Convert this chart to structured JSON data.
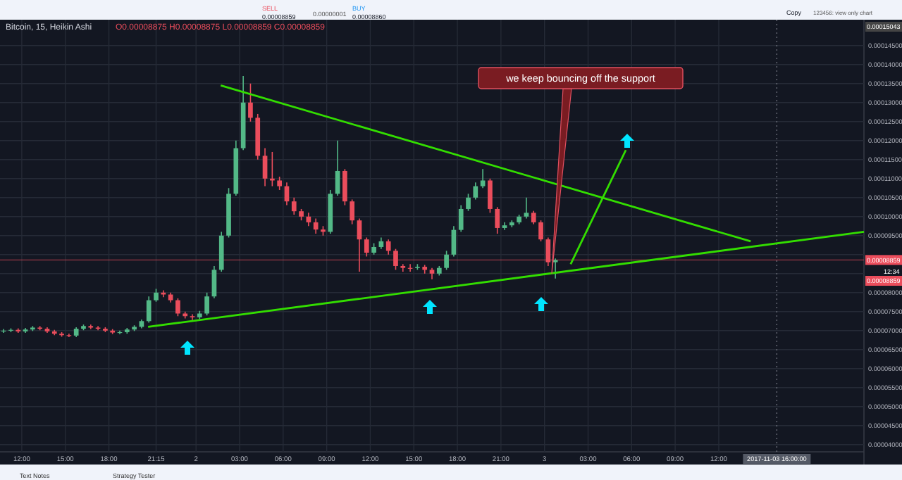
{
  "chart_data": {
    "type": "candlestick",
    "title": "Bitcoin, 15, Heikin Ashi",
    "subtitle": "O0.00008875 H0.00008875 L0.00008859 C0.00008859",
    "xlim": [
      "2017-11-01T10:30",
      "2017-11-03T22:00"
    ],
    "ylim": [
      3.9e-05,
      0.0001518
    ],
    "xticks": [
      {
        "value": "2017-11-01T12:00",
        "label": "12:00"
      },
      {
        "value": "2017-11-01T15:00",
        "label": "15:00"
      },
      {
        "value": "2017-11-01T18:00",
        "label": "18:00"
      },
      {
        "value": "2017-11-01T21:15",
        "label": "21:15"
      },
      {
        "value": "2017-11-02T00:00",
        "label": "2"
      },
      {
        "value": "2017-11-02T03:00",
        "label": "03:00"
      },
      {
        "value": "2017-11-02T06:00",
        "label": "06:00"
      },
      {
        "value": "2017-11-02T09:00",
        "label": "09:00"
      },
      {
        "value": "2017-11-02T12:00",
        "label": "12:00"
      },
      {
        "value": "2017-11-02T15:00",
        "label": "15:00"
      },
      {
        "value": "2017-11-02T18:00",
        "label": "18:00"
      },
      {
        "value": "2017-11-02T21:00",
        "label": "21:00"
      },
      {
        "value": "2017-11-03T00:00",
        "label": "3"
      },
      {
        "value": "2017-11-03T03:00",
        "label": "03:00"
      },
      {
        "value": "2017-11-03T06:00",
        "label": "06:00"
      },
      {
        "value": "2017-11-03T09:00",
        "label": "09:00"
      },
      {
        "value": "2017-11-03T12:00",
        "label": "12:00"
      }
    ],
    "yticks": [
      {
        "value": 4e-05,
        "label": "0.00004000"
      },
      {
        "value": 4.5e-05,
        "label": "0.00004500"
      },
      {
        "value": 5e-05,
        "label": "0.00005000"
      },
      {
        "value": 5.5e-05,
        "label": "0.00005500"
      },
      {
        "value": 6e-05,
        "label": "0.00006000"
      },
      {
        "value": 6.5e-05,
        "label": "0.00006500"
      },
      {
        "value": 7e-05,
        "label": "0.00007000"
      },
      {
        "value": 7.5e-05,
        "label": "0.00007500"
      },
      {
        "value": 8e-05,
        "label": "0.00008000"
      },
      {
        "value": 8.5e-05,
        "label": null
      },
      {
        "value": 9e-05,
        "label": null
      },
      {
        "value": 9.5e-05,
        "label": "0.00009500"
      },
      {
        "value": 0.0001,
        "label": "0.00010000"
      },
      {
        "value": 0.000105,
        "label": "0.00010500"
      },
      {
        "value": 0.00011,
        "label": "0.00011000"
      },
      {
        "value": 0.000115,
        "label": "0.00011500"
      },
      {
        "value": 0.00012,
        "label": "0.00012000"
      },
      {
        "value": 0.000125,
        "label": "0.00012500"
      },
      {
        "value": 0.00013,
        "label": "0.00013000"
      },
      {
        "value": 0.000135,
        "label": "0.00013500"
      },
      {
        "value": 0.00014,
        "label": "0.00014000"
      },
      {
        "value": 0.000145,
        "label": "0.00014500"
      }
    ],
    "grid": true,
    "series": [
      {
        "x": [
          "2017-11-01T10:45",
          "2017-11-01T11:15",
          "2017-11-01T11:45",
          "2017-11-01T12:15",
          "2017-11-01T12:45",
          "2017-11-01T13:15",
          "2017-11-01T13:45",
          "2017-11-01T14:15",
          "2017-11-01T14:45",
          "2017-11-01T15:15",
          "2017-11-01T15:45",
          "2017-11-01T16:15",
          "2017-11-01T16:45",
          "2017-11-01T17:15",
          "2017-11-01T17:45",
          "2017-11-01T18:15",
          "2017-11-01T18:45",
          "2017-11-01T19:15",
          "2017-11-01T19:45",
          "2017-11-01T20:15",
          "2017-11-01T20:45",
          "2017-11-01T21:15",
          "2017-11-01T21:45",
          "2017-11-01T22:15",
          "2017-11-01T22:45",
          "2017-11-01T23:15",
          "2017-11-01T23:45",
          "2017-11-02T00:15",
          "2017-11-02T00:45",
          "2017-11-02T01:15",
          "2017-11-02T01:45",
          "2017-11-02T02:15",
          "2017-11-02T02:45",
          "2017-11-02T03:15",
          "2017-11-02T03:45",
          "2017-11-02T04:15",
          "2017-11-02T04:45",
          "2017-11-02T05:15",
          "2017-11-02T05:45",
          "2017-11-02T06:15",
          "2017-11-02T06:45",
          "2017-11-02T07:15",
          "2017-11-02T07:45",
          "2017-11-02T08:15",
          "2017-11-02T08:45",
          "2017-11-02T09:15",
          "2017-11-02T09:45",
          "2017-11-02T10:15",
          "2017-11-02T10:45",
          "2017-11-02T11:15",
          "2017-11-02T11:45",
          "2017-11-02T12:15",
          "2017-11-02T12:45",
          "2017-11-02T13:15",
          "2017-11-02T13:45",
          "2017-11-02T14:15",
          "2017-11-02T14:45",
          "2017-11-02T15:15",
          "2017-11-02T15:45",
          "2017-11-02T16:15",
          "2017-11-02T16:45",
          "2017-11-02T17:15",
          "2017-11-02T17:45",
          "2017-11-02T18:15",
          "2017-11-02T18:45",
          "2017-11-02T19:15",
          "2017-11-02T19:45",
          "2017-11-02T20:15",
          "2017-11-02T20:45",
          "2017-11-02T21:15",
          "2017-11-02T21:45",
          "2017-11-02T22:15",
          "2017-11-02T22:45",
          "2017-11-02T23:15",
          "2017-11-02T23:45",
          "2017-11-03T00:15",
          "2017-11-03T00:45"
        ],
        "ohlc": [
          [
            6.98e-05,
            7.04e-05,
            6.94e-05,
            7e-05
          ],
          [
            7e-05,
            7.06e-05,
            6.96e-05,
            7.02e-05
          ],
          [
            7.02e-05,
            7.06e-05,
            6.94e-05,
            6.98e-05
          ],
          [
            6.98e-05,
            7.07e-05,
            6.94e-05,
            7.03e-05
          ],
          [
            7.03e-05,
            7.12e-05,
            6.99e-05,
            7.08e-05
          ],
          [
            7.08e-05,
            7.12e-05,
            7.01e-05,
            7.05e-05
          ],
          [
            7.05e-05,
            7.09e-05,
            6.94e-05,
            6.98e-05
          ],
          [
            6.98e-05,
            7.02e-05,
            6.88e-05,
            6.92e-05
          ],
          [
            6.92e-05,
            6.96e-05,
            6.84e-05,
            6.88e-05
          ],
          [
            6.88e-05,
            6.92e-05,
            6.83e-05,
            6.87e-05
          ],
          [
            6.87e-05,
            7.09e-05,
            6.83e-05,
            7.05e-05
          ],
          [
            7.05e-05,
            7.16e-05,
            7.01e-05,
            7.12e-05
          ],
          [
            7.12e-05,
            7.16e-05,
            7.04e-05,
            7.08e-05
          ],
          [
            7.08e-05,
            7.12e-05,
            7.01e-05,
            7.05e-05
          ],
          [
            7.05e-05,
            7.09e-05,
            6.96e-05,
            7e-05
          ],
          [
            7e-05,
            7.04e-05,
            6.91e-05,
            6.95e-05
          ],
          [
            6.95e-05,
            7e-05,
            6.91e-05,
            6.96e-05
          ],
          [
            6.96e-05,
            7.07e-05,
            6.92e-05,
            7.03e-05
          ],
          [
            7.03e-05,
            7.14e-05,
            6.99e-05,
            7.1e-05
          ],
          [
            7.1e-05,
            7.29e-05,
            7.06e-05,
            7.25e-05
          ],
          [
            7.25e-05,
            7.9e-05,
            7.21e-05,
            7.8e-05
          ],
          [
            7.8e-05,
            8.1e-05,
            7.76e-05,
            8e-05
          ],
          [
            8e-05,
            8.06e-05,
            7.88e-05,
            7.95e-05
          ],
          [
            7.95e-05,
            8e-05,
            7.74e-05,
            7.8e-05
          ],
          [
            7.8e-05,
            7.85e-05,
            7.38e-05,
            7.45e-05
          ],
          [
            7.45e-05,
            7.5e-05,
            7.32e-05,
            7.38e-05
          ],
          [
            7.38e-05,
            7.43e-05,
            7.28e-05,
            7.35e-05
          ],
          [
            7.35e-05,
            7.52e-05,
            7.3e-05,
            7.45e-05
          ],
          [
            7.45e-05,
            8e-05,
            7.4e-05,
            7.9e-05
          ],
          [
            7.9e-05,
            8.7e-05,
            7.85e-05,
            8.6e-05
          ],
          [
            8.6e-05,
            9.6e-05,
            8.55e-05,
            9.5e-05
          ],
          [
            9.5e-05,
            0.0001075,
            9.45e-05,
            0.000106
          ],
          [
            0.000106,
            0.00012,
            0.0001055,
            0.000118
          ],
          [
            0.000118,
            0.000137,
            0.0001175,
            0.00013
          ],
          [
            0.00013,
            0.000135,
            0.000125,
            0.000126
          ],
          [
            0.000126,
            0.000127,
            0.000115,
            0.000116
          ],
          [
            0.000116,
            0.000118,
            0.000108,
            0.00011
          ],
          [
            0.00011,
            0.000117,
            0.000108,
            0.0001095
          ],
          [
            0.0001095,
            0.0001105,
            0.000107,
            0.000108
          ],
          [
            0.000108,
            0.000109,
            0.000103,
            0.000104
          ],
          [
            0.000104,
            0.000105,
            0.0001005,
            0.0001014
          ],
          [
            0.0001014,
            0.000102,
            9.9e-05,
            0.0001
          ],
          [
            0.0001,
            0.000101,
            9.75e-05,
            9.85e-05
          ],
          [
            9.85e-05,
            9.95e-05,
            9.55e-05,
            9.66e-05
          ],
          [
            9.66e-05,
            9.75e-05,
            9.5e-05,
            9.6e-05
          ],
          [
            9.6e-05,
            0.000107,
            9.55e-05,
            0.000106
          ],
          [
            0.000106,
            0.00012,
            0.0001055,
            0.000112
          ],
          [
            0.000112,
            0.0001125,
            0.000103,
            0.000104
          ],
          [
            0.000104,
            0.0001045,
            9.8e-05,
            9.9e-05
          ],
          [
            9.9e-05,
            9.95e-05,
            8.55e-05,
            9.4e-05
          ],
          [
            9.4e-05,
            9.45e-05,
            8.95e-05,
            9.05e-05
          ],
          [
            9.05e-05,
            9.3e-05,
            9e-05,
            9.2e-05
          ],
          [
            9.2e-05,
            9.45e-05,
            9.15e-05,
            9.35e-05
          ],
          [
            9.35e-05,
            9.4e-05,
            9e-05,
            9.1e-05
          ],
          [
            9.1e-05,
            9.15e-05,
            8.6e-05,
            8.7e-05
          ],
          [
            8.7e-05,
            8.75e-05,
            8.55e-05,
            8.65e-05
          ],
          [
            8.65e-05,
            8.75e-05,
            8.55e-05,
            8.65e-05
          ],
          [
            8.65e-05,
            8.75e-05,
            8.6e-05,
            8.68e-05
          ],
          [
            8.68e-05,
            8.73e-05,
            8.5e-05,
            8.6e-05
          ],
          [
            8.6e-05,
            8.65e-05,
            8.35e-05,
            8.5e-05
          ],
          [
            8.5e-05,
            8.7e-05,
            8.45e-05,
            8.65e-05
          ],
          [
            8.65e-05,
            9.1e-05,
            8.6e-05,
            9e-05
          ],
          [
            9e-05,
            9.75e-05,
            8.95e-05,
            9.65e-05
          ],
          [
            9.65e-05,
            0.000103,
            9.6e-05,
            0.000102
          ],
          [
            0.000102,
            0.000106,
            0.0001015,
            0.000105
          ],
          [
            0.000105,
            0.000109,
            0.0001045,
            0.000108
          ],
          [
            0.000108,
            0.0001125,
            0.0001075,
            0.0001095
          ],
          [
            0.0001095,
            0.00011,
            0.000101,
            0.000102
          ],
          [
            0.000102,
            0.0001025,
            9.55e-05,
            9.7e-05
          ],
          [
            9.7e-05,
            9.85e-05,
            9.65e-05,
            9.77e-05
          ],
          [
            9.77e-05,
            9.9e-05,
            9.72e-05,
            9.85e-05
          ],
          [
            9.85e-05,
            0.0001005,
            9.8e-05,
            0.0001
          ],
          [
            0.0001,
            0.000105,
            9.95e-05,
            0.000101
          ],
          [
            0.000101,
            0.0001015,
            9.8e-05,
            9.85e-05
          ],
          [
            9.85e-05,
            9.9e-05,
            9.35e-05,
            9.4e-05
          ],
          [
            9.4e-05,
            9.45e-05,
            8.7e-05,
            8.8e-05
          ],
          [
            8.8e-05,
            8.9e-05,
            8.37e-05,
            8.859e-05
          ]
        ],
        "colors": [
          "#53b987",
          "#53b987",
          "#eb4d5c",
          "#53b987",
          "#53b987",
          "#eb4d5c",
          "#eb4d5c",
          "#eb4d5c",
          "#eb4d5c",
          "#eb4d5c",
          "#53b987",
          "#53b987",
          "#eb4d5c",
          "#eb4d5c",
          "#eb4d5c",
          "#eb4d5c",
          "#53b987",
          "#53b987",
          "#53b987",
          "#53b987",
          "#53b987",
          "#53b987",
          "#eb4d5c",
          "#eb4d5c",
          "#eb4d5c",
          "#eb4d5c",
          "#eb4d5c",
          "#53b987",
          "#53b987",
          "#53b987",
          "#53b987",
          "#53b987",
          "#53b987",
          "#53b987",
          "#eb4d5c",
          "#eb4d5c",
          "#eb4d5c",
          "#eb4d5c",
          "#eb4d5c",
          "#eb4d5c",
          "#eb4d5c",
          "#eb4d5c",
          "#eb4d5c",
          "#eb4d5c",
          "#eb4d5c",
          "#53b987",
          "#53b987",
          "#eb4d5c",
          "#eb4d5c",
          "#eb4d5c",
          "#eb4d5c",
          "#53b987",
          "#53b987",
          "#eb4d5c",
          "#eb4d5c",
          "#eb4d5c",
          "#eb4d5c",
          "#53b987",
          "#eb4d5c",
          "#eb4d5c",
          "#53b987",
          "#53b987",
          "#53b987",
          "#53b987",
          "#53b987",
          "#53b987",
          "#53b987",
          "#eb4d5c",
          "#eb4d5c",
          "#53b987",
          "#53b987",
          "#53b987",
          "#53b987",
          "#eb4d5c",
          "#eb4d5c",
          "#eb4d5c",
          "#53b987"
        ]
      },
      {
        "type": "line",
        "x": [
          "2017-11-01T20:42",
          "2017-11-03T22:00"
        ],
        "values": [
          7.1e-05,
          9.6e-05
        ],
        "color": "#33dd00"
      },
      {
        "type": "line",
        "x": [
          "2017-11-02T01:42",
          "2017-11-03T14:12"
        ],
        "values": [
          0.0001345,
          9.35e-05
        ],
        "color": "#33dd00"
      },
      {
        "type": "line",
        "x": [
          "2017-11-03T01:48",
          "2017-11-03T05:36"
        ],
        "values": [
          8.75e-05,
          0.0001175
        ],
        "color": "#33dd00"
      }
    ],
    "ref_lines": [
      {
        "axis": "y",
        "value": 8.859e-05,
        "label": "0.00008859",
        "color": "#eb4d5c",
        "line_style": "solid"
      },
      {
        "axis": "x",
        "value": "2017-11-03T16:00",
        "label": "2017-11-03 16:00:00",
        "color": "#787b86",
        "line_style": "dotted"
      }
    ],
    "annotations": [
      {
        "text": "we keep bouncing off the support",
        "x": "2017-11-03T00:30",
        "y": 8.5e-05
      },
      "SELL",
      "0.00008859",
      "0.00000001",
      "BUY",
      "0.00008860",
      "Copy",
      "123456: view only chart",
      "Text Notes",
      "Strategy Tester",
      "0.00015043",
      "12:34",
      "0.00008859"
    ]
  }
}
